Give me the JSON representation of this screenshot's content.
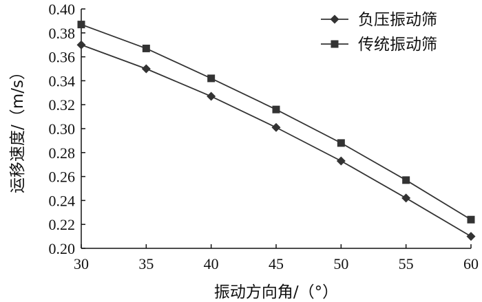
{
  "chart_data": {
    "type": "line",
    "title": "",
    "xlabel": "振动方向角/（°）",
    "ylabel": "运移速度/（m/s）",
    "x": [
      30,
      35,
      40,
      45,
      50,
      55,
      60
    ],
    "xlim": [
      30,
      60
    ],
    "ylim": [
      0.2,
      0.4
    ],
    "xticks": [
      "30",
      "35",
      "40",
      "45",
      "50",
      "55",
      "60"
    ],
    "yticks": [
      "0.20",
      "0.22",
      "0.24",
      "0.26",
      "0.28",
      "0.30",
      "0.32",
      "0.34",
      "0.36",
      "0.38",
      "0.40"
    ],
    "grid": false,
    "legend_position": "top-right",
    "series": [
      {
        "name": "负压振动筛",
        "marker": "diamond",
        "color": "#333333",
        "values": [
          0.37,
          0.35,
          0.327,
          0.301,
          0.273,
          0.242,
          0.21
        ]
      },
      {
        "name": "传统振动筛",
        "marker": "square",
        "color": "#333333",
        "values": [
          0.387,
          0.367,
          0.342,
          0.316,
          0.288,
          0.257,
          0.224
        ]
      }
    ]
  }
}
